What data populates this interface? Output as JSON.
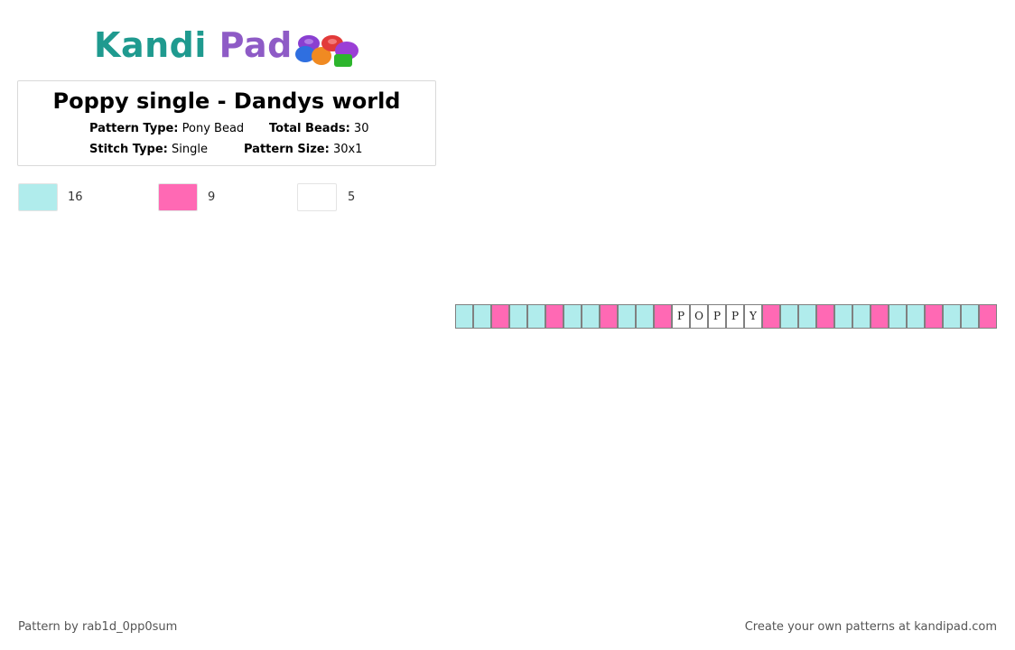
{
  "logo": {
    "part1": "Kandi",
    "part2": "Pad",
    "icon": "beads-logo-icon"
  },
  "pattern": {
    "title": "Poppy single - Dandys world",
    "type_label": "Pattern Type:",
    "type_value": "Pony Bead",
    "beads_label": "Total Beads:",
    "beads_value": "30",
    "stitch_label": "Stitch Type:",
    "stitch_value": "Single",
    "size_label": "Pattern Size:",
    "size_value": "30x1"
  },
  "colors": [
    {
      "hex": "#b0ecec",
      "count": "16"
    },
    {
      "hex": "#ff69b4",
      "count": "9"
    },
    {
      "hex": "#ffffff",
      "count": "5"
    }
  ],
  "beads": [
    {
      "c": 0,
      "l": ""
    },
    {
      "c": 0,
      "l": ""
    },
    {
      "c": 1,
      "l": ""
    },
    {
      "c": 0,
      "l": ""
    },
    {
      "c": 0,
      "l": ""
    },
    {
      "c": 1,
      "l": ""
    },
    {
      "c": 0,
      "l": ""
    },
    {
      "c": 0,
      "l": ""
    },
    {
      "c": 1,
      "l": ""
    },
    {
      "c": 0,
      "l": ""
    },
    {
      "c": 0,
      "l": ""
    },
    {
      "c": 1,
      "l": ""
    },
    {
      "c": 2,
      "l": "P"
    },
    {
      "c": 2,
      "l": "O"
    },
    {
      "c": 2,
      "l": "P"
    },
    {
      "c": 2,
      "l": "P"
    },
    {
      "c": 2,
      "l": "Y"
    },
    {
      "c": 1,
      "l": ""
    },
    {
      "c": 0,
      "l": ""
    },
    {
      "c": 0,
      "l": ""
    },
    {
      "c": 1,
      "l": ""
    },
    {
      "c": 0,
      "l": ""
    },
    {
      "c": 0,
      "l": ""
    },
    {
      "c": 1,
      "l": ""
    },
    {
      "c": 0,
      "l": ""
    },
    {
      "c": 0,
      "l": ""
    },
    {
      "c": 1,
      "l": ""
    },
    {
      "c": 0,
      "l": ""
    },
    {
      "c": 0,
      "l": ""
    },
    {
      "c": 1,
      "l": ""
    }
  ],
  "footer": {
    "author": "Pattern by rab1d_0pp0sum",
    "promo": "Create your own patterns at kandipad.com"
  }
}
